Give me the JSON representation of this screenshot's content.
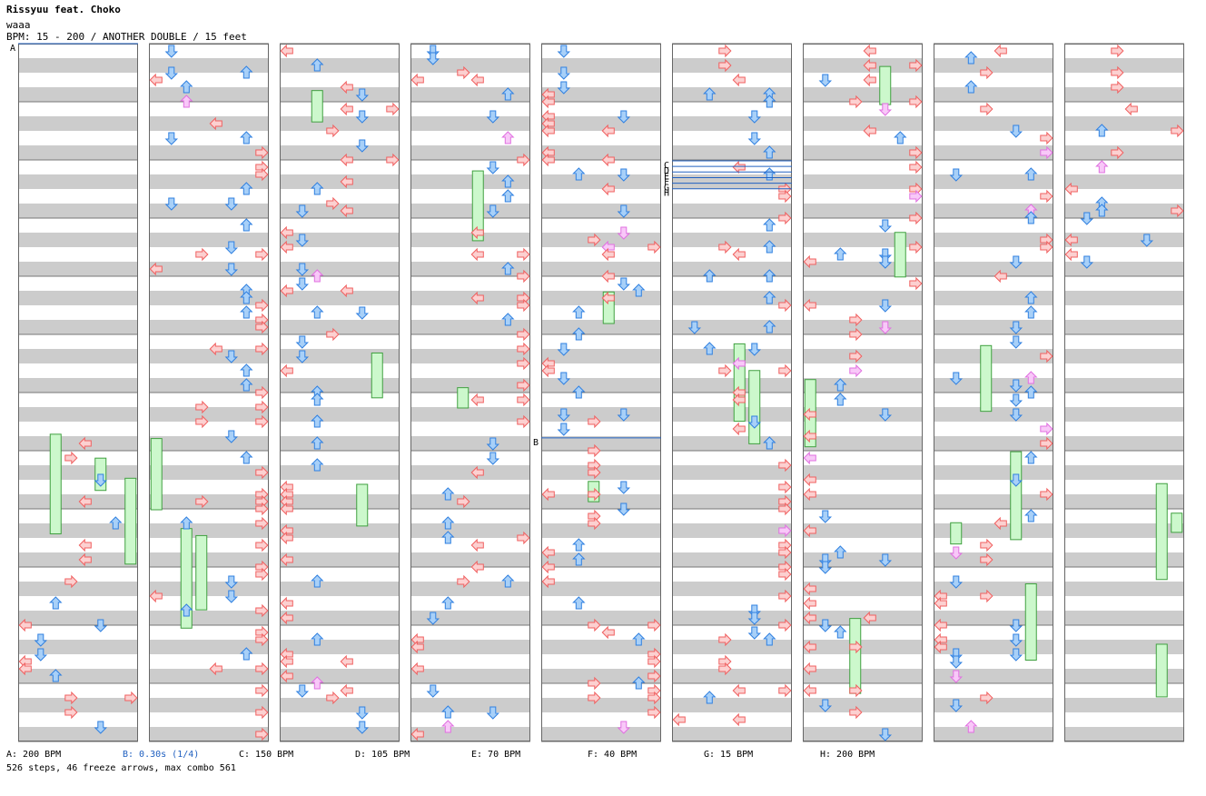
{
  "header": {
    "title": "Rissyuu feat. Choko",
    "subtitle": "waaa",
    "info": "BPM: 15 - 200 / ANOTHER DOUBLE / 15 feet"
  },
  "colors": {
    "red": "#f06060",
    "red_fill": "#fcd0d0",
    "blue": "#3080e0",
    "blue_fill": "#a8d0f8",
    "pink": "#e070e0",
    "pink_fill": "#f8c8f8",
    "freeze_fill": "#ccf8cc",
    "freeze_border": "#40a040",
    "stripe": "#cccccc",
    "marker_line": "#2060c0"
  },
  "legend": [
    {
      "text": "A: 200 BPM",
      "highlight": false
    },
    {
      "text": "B: 0.30s (1/4)",
      "highlight": true
    },
    {
      "text": "C: 150 BPM",
      "highlight": false
    },
    {
      "text": "D: 105 BPM",
      "highlight": false
    },
    {
      "text": "E: 70 BPM",
      "highlight": false
    },
    {
      "text": "F: 40 BPM",
      "highlight": false
    },
    {
      "text": "G: 15 BPM",
      "highlight": false
    },
    {
      "text": "H: 200 BPM",
      "highlight": false
    }
  ],
  "stats": "526 steps, 46 freeze arrows, max combo 561",
  "markers": [
    {
      "col": 0,
      "pos": 0.0,
      "label": "A"
    },
    {
      "col": 4,
      "pos": 0.565,
      "label": "B"
    },
    {
      "col": 5,
      "pos": 0.168,
      "label": "C"
    },
    {
      "col": 5,
      "pos": 0.176,
      "label": "D"
    },
    {
      "col": 5,
      "pos": 0.184,
      "label": "E"
    },
    {
      "col": 5,
      "pos": 0.192,
      "label": "F"
    },
    {
      "col": 5,
      "pos": 0.2,
      "label": "G"
    },
    {
      "col": 5,
      "pos": 0.208,
      "label": "H"
    }
  ],
  "columns": 9,
  "lanes_per_column": 8
}
